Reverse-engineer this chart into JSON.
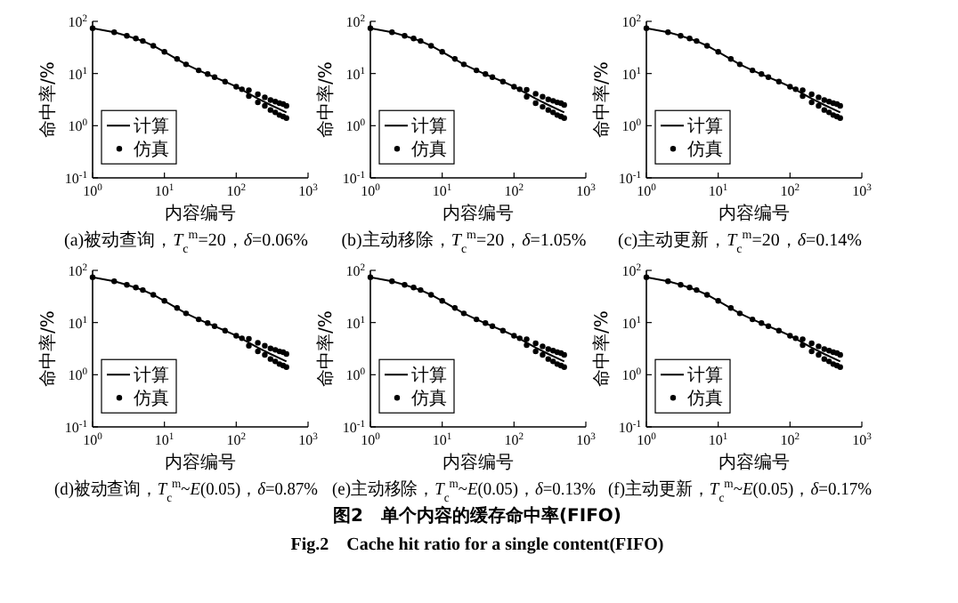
{
  "chart_data": [
    {
      "type": "line",
      "title": "(a)被动查询，*T*$_{c}$$^{m}$=20，*δ*=0.06%",
      "xlabel": "内容编号",
      "ylabel": "命中率/%",
      "log": "xy",
      "xlim": [
        1,
        1000
      ],
      "ylim": [
        0.1,
        100
      ],
      "xticks": [
        {
          "value": 1,
          "label": "10$^{0}$"
        },
        {
          "value": 10,
          "label": "10$^{1}$"
        },
        {
          "value": 100,
          "label": "10$^{2}$"
        },
        {
          "value": 1000,
          "label": "10$^{3}$"
        }
      ],
      "yticks": [
        {
          "value": 0.1,
          "label": "10$^{-1}$"
        },
        {
          "value": 1,
          "label": "10$^{0}$"
        },
        {
          "value": 10,
          "label": "10$^{1}$"
        },
        {
          "value": 100,
          "label": "10$^{2}$"
        }
      ],
      "legend": "bottom left",
      "annotations": [
        "图2　单个内容的缓存命中率(FIFO)",
        "Fig.2　Cache hit ratio for a single content(FIFO)"
      ],
      "series": [
        {
          "name": "计算",
          "type": "line",
          "color": "#000000",
          "x": [
            1,
            2,
            3,
            5,
            7,
            10,
            20,
            30,
            50,
            70,
            100,
            200,
            300,
            500
          ],
          "values": [
            74,
            62,
            53,
            42,
            34,
            26,
            15,
            11.5,
            8.5,
            7,
            5.6,
            3.3,
            2.5,
            1.8
          ]
        },
        {
          "name": "仿真",
          "type": "scatter",
          "marker": "circle",
          "color": "#000000",
          "x": [
            1,
            2,
            3,
            4,
            5,
            7,
            10,
            15,
            20,
            30,
            40,
            50,
            70,
            100,
            120,
            150,
            150,
            200,
            200,
            250,
            250,
            300,
            300,
            350,
            350,
            400,
            400,
            450,
            450,
            500,
            500
          ],
          "values": [
            74,
            62,
            53,
            47,
            42,
            34,
            26,
            19,
            15,
            11.5,
            9.8,
            8.5,
            7,
            5.6,
            5,
            4.8,
            3.7,
            4,
            2.8,
            3.5,
            2.4,
            3.1,
            2,
            2.9,
            1.8,
            2.7,
            1.6,
            2.6,
            1.5,
            2.4,
            1.4
          ]
        }
      ]
    },
    {
      "type": "line",
      "title": "(b)主动移除，*T*$_{c}$$^{m}$=20，*δ*=1.05%",
      "xlabel": "内容编号",
      "ylabel": "命中率/%",
      "log": "xy",
      "xlim": [
        1,
        1000
      ],
      "ylim": [
        0.1,
        100
      ],
      "xticks": [
        {
          "value": 1,
          "label": "10$^{0}$"
        },
        {
          "value": 10,
          "label": "10$^{1}$"
        },
        {
          "value": 100,
          "label": "10$^{2}$"
        },
        {
          "value": 1000,
          "label": "10$^{3}$"
        }
      ],
      "yticks": [
        {
          "value": 0.1,
          "label": "10$^{-1}$"
        },
        {
          "value": 1,
          "label": "10$^{0}$"
        },
        {
          "value": 10,
          "label": "10$^{1}$"
        },
        {
          "value": 100,
          "label": "10$^{2}$"
        }
      ],
      "legend": "bottom left",
      "series": [
        {
          "name": "计算",
          "type": "line",
          "color": "#000000",
          "x": [
            1,
            2,
            3,
            5,
            7,
            10,
            20,
            30,
            50,
            70,
            100,
            200,
            300,
            500
          ],
          "values": [
            74,
            62,
            53,
            42,
            34,
            26,
            15,
            11.5,
            8.5,
            7,
            5.6,
            3.3,
            2.5,
            1.8
          ]
        },
        {
          "name": "仿真",
          "type": "scatter",
          "marker": "circle",
          "color": "#000000",
          "x": [
            1,
            2,
            3,
            4,
            5,
            7,
            10,
            15,
            20,
            30,
            40,
            50,
            70,
            100,
            120,
            150,
            150,
            200,
            200,
            250,
            250,
            300,
            300,
            350,
            350,
            400,
            400,
            450,
            450,
            500,
            500
          ],
          "values": [
            74,
            62,
            53,
            47,
            42,
            34,
            26,
            19,
            15,
            11.5,
            9.8,
            8.5,
            7,
            5.6,
            5,
            4.9,
            3.6,
            4.1,
            2.7,
            3.6,
            2.3,
            3.2,
            2,
            3,
            1.8,
            2.8,
            1.6,
            2.7,
            1.5,
            2.5,
            1.4
          ]
        }
      ]
    },
    {
      "type": "line",
      "title": "(c)主动更新，*T*$_{c}$$^{m}$=20，*δ*=0.14%",
      "xlabel": "内容编号",
      "ylabel": "命中率/%",
      "log": "xy",
      "xlim": [
        1,
        1000
      ],
      "ylim": [
        0.1,
        100
      ],
      "xticks": [
        {
          "value": 1,
          "label": "10$^{0}$"
        },
        {
          "value": 10,
          "label": "10$^{1}$"
        },
        {
          "value": 100,
          "label": "10$^{2}$"
        },
        {
          "value": 1000,
          "label": "10$^{3}$"
        }
      ],
      "yticks": [
        {
          "value": 0.1,
          "label": "10$^{-1}$"
        },
        {
          "value": 1,
          "label": "10$^{0}$"
        },
        {
          "value": 10,
          "label": "10$^{1}$"
        },
        {
          "value": 100,
          "label": "10$^{2}$"
        }
      ],
      "legend": "bottom left",
      "series": [
        {
          "name": "计算",
          "type": "line",
          "color": "#000000",
          "x": [
            1,
            2,
            3,
            5,
            7,
            10,
            20,
            30,
            50,
            70,
            100,
            200,
            300,
            500
          ],
          "values": [
            74,
            62,
            53,
            42,
            34,
            26,
            15,
            11.5,
            8.5,
            7,
            5.6,
            3.3,
            2.5,
            1.8
          ]
        },
        {
          "name": "仿真",
          "type": "scatter",
          "marker": "circle",
          "color": "#000000",
          "x": [
            1,
            2,
            3,
            4,
            5,
            7,
            10,
            15,
            20,
            30,
            40,
            50,
            70,
            100,
            120,
            150,
            150,
            200,
            200,
            250,
            250,
            300,
            300,
            350,
            350,
            400,
            400,
            450,
            450,
            500,
            500
          ],
          "values": [
            74,
            62,
            53,
            47,
            42,
            34,
            26,
            19,
            15,
            11.5,
            9.8,
            8.5,
            7,
            5.6,
            5,
            4.8,
            3.7,
            4,
            2.8,
            3.5,
            2.4,
            3.1,
            2,
            2.9,
            1.8,
            2.7,
            1.6,
            2.6,
            1.5,
            2.4,
            1.4
          ]
        }
      ]
    },
    {
      "type": "line",
      "title": "(d)被动查询，*T*$_{c}$$^{m}$~*E*(0.05)，*δ*=0.87%",
      "xlabel": "内容编号",
      "ylabel": "命中率/%",
      "log": "xy",
      "xlim": [
        1,
        1000
      ],
      "ylim": [
        0.1,
        100
      ],
      "xticks": [
        {
          "value": 1,
          "label": "10$^{0}$"
        },
        {
          "value": 10,
          "label": "10$^{1}$"
        },
        {
          "value": 100,
          "label": "10$^{2}$"
        },
        {
          "value": 1000,
          "label": "10$^{3}$"
        }
      ],
      "yticks": [
        {
          "value": 0.1,
          "label": "10$^{-1}$"
        },
        {
          "value": 1,
          "label": "10$^{0}$"
        },
        {
          "value": 10,
          "label": "10$^{1}$"
        },
        {
          "value": 100,
          "label": "10$^{2}$"
        }
      ],
      "legend": "bottom left",
      "series": [
        {
          "name": "计算",
          "type": "line",
          "color": "#000000",
          "x": [
            1,
            2,
            3,
            5,
            7,
            10,
            20,
            30,
            50,
            70,
            100,
            200,
            300,
            500
          ],
          "values": [
            74,
            62,
            53,
            42,
            34,
            26,
            15,
            11.5,
            8.5,
            7,
            5.6,
            3.3,
            2.5,
            1.8
          ]
        },
        {
          "name": "仿真",
          "type": "scatter",
          "marker": "circle",
          "color": "#000000",
          "x": [
            1,
            2,
            3,
            4,
            5,
            7,
            10,
            15,
            20,
            30,
            40,
            50,
            70,
            100,
            120,
            150,
            150,
            200,
            200,
            250,
            250,
            300,
            300,
            350,
            350,
            400,
            400,
            450,
            450,
            500,
            500
          ],
          "values": [
            74,
            62,
            53,
            47,
            42,
            34,
            26,
            19,
            15,
            11.5,
            9.8,
            8.5,
            7,
            5.6,
            5,
            4.9,
            3.6,
            4.1,
            2.8,
            3.6,
            2.4,
            3.2,
            2,
            3,
            1.8,
            2.8,
            1.6,
            2.7,
            1.5,
            2.5,
            1.4
          ]
        }
      ]
    },
    {
      "type": "line",
      "title": "(e)主动移除，*T*$_{c}$$^{m}$~*E*(0.05)，*δ*=0.13%",
      "xlabel": "内容编号",
      "ylabel": "命中率/%",
      "log": "xy",
      "xlim": [
        1,
        1000
      ],
      "ylim": [
        0.1,
        100
      ],
      "xticks": [
        {
          "value": 1,
          "label": "10$^{0}$"
        },
        {
          "value": 10,
          "label": "10$^{1}$"
        },
        {
          "value": 100,
          "label": "10$^{2}$"
        },
        {
          "value": 1000,
          "label": "10$^{3}$"
        }
      ],
      "yticks": [
        {
          "value": 0.1,
          "label": "10$^{-1}$"
        },
        {
          "value": 1,
          "label": "10$^{0}$"
        },
        {
          "value": 10,
          "label": "10$^{1}$"
        },
        {
          "value": 100,
          "label": "10$^{2}$"
        }
      ],
      "legend": "bottom left",
      "series": [
        {
          "name": "计算",
          "type": "line",
          "color": "#000000",
          "x": [
            1,
            2,
            3,
            5,
            7,
            10,
            20,
            30,
            50,
            70,
            100,
            200,
            300,
            500
          ],
          "values": [
            74,
            62,
            53,
            42,
            34,
            26,
            15,
            11.5,
            8.5,
            7,
            5.6,
            3.3,
            2.5,
            1.8
          ]
        },
        {
          "name": "仿真",
          "type": "scatter",
          "marker": "circle",
          "color": "#000000",
          "x": [
            1,
            2,
            3,
            4,
            5,
            7,
            10,
            15,
            20,
            30,
            40,
            50,
            70,
            100,
            120,
            150,
            150,
            200,
            200,
            250,
            250,
            300,
            300,
            350,
            350,
            400,
            400,
            450,
            450,
            500,
            500
          ],
          "values": [
            74,
            62,
            53,
            47,
            42,
            34,
            26,
            19,
            15,
            11.5,
            9.8,
            8.5,
            7,
            5.6,
            5,
            4.8,
            3.7,
            4,
            2.8,
            3.5,
            2.4,
            3.1,
            2,
            2.9,
            1.8,
            2.7,
            1.6,
            2.6,
            1.5,
            2.4,
            1.4
          ]
        }
      ]
    },
    {
      "type": "line",
      "title": "(f)主动更新，*T*$_{c}$$^{m}$~*E*(0.05)，*δ*=0.17%",
      "xlabel": "内容编号",
      "ylabel": "命中率/%",
      "log": "xy",
      "xlim": [
        1,
        1000
      ],
      "ylim": [
        0.1,
        100
      ],
      "xticks": [
        {
          "value": 1,
          "label": "10$^{0}$"
        },
        {
          "value": 10,
          "label": "10$^{1}$"
        },
        {
          "value": 100,
          "label": "10$^{2}$"
        },
        {
          "value": 1000,
          "label": "10$^{3}$"
        }
      ],
      "yticks": [
        {
          "value": 0.1,
          "label": "10$^{-1}$"
        },
        {
          "value": 1,
          "label": "10$^{0}$"
        },
        {
          "value": 10,
          "label": "10$^{1}$"
        },
        {
          "value": 100,
          "label": "10$^{2}$"
        }
      ],
      "legend": "bottom left",
      "series": [
        {
          "name": "计算",
          "type": "line",
          "color": "#000000",
          "x": [
            1,
            2,
            3,
            5,
            7,
            10,
            20,
            30,
            50,
            70,
            100,
            200,
            300,
            500
          ],
          "values": [
            74,
            62,
            53,
            42,
            34,
            26,
            15,
            11.5,
            8.5,
            7,
            5.6,
            3.3,
            2.5,
            1.8
          ]
        },
        {
          "name": "仿真",
          "type": "scatter",
          "marker": "circle",
          "color": "#000000",
          "x": [
            1,
            2,
            3,
            4,
            5,
            7,
            10,
            15,
            20,
            30,
            40,
            50,
            70,
            100,
            120,
            150,
            150,
            200,
            200,
            250,
            250,
            300,
            300,
            350,
            350,
            400,
            400,
            450,
            450,
            500,
            500
          ],
          "values": [
            74,
            62,
            53,
            47,
            42,
            34,
            26,
            19,
            15,
            11.5,
            9.8,
            8.5,
            7,
            5.6,
            5,
            4.8,
            3.7,
            4,
            2.8,
            3.5,
            2.4,
            3.1,
            2,
            2.9,
            1.8,
            2.7,
            1.6,
            2.6,
            1.5,
            2.4,
            1.4
          ]
        }
      ]
    }
  ]
}
